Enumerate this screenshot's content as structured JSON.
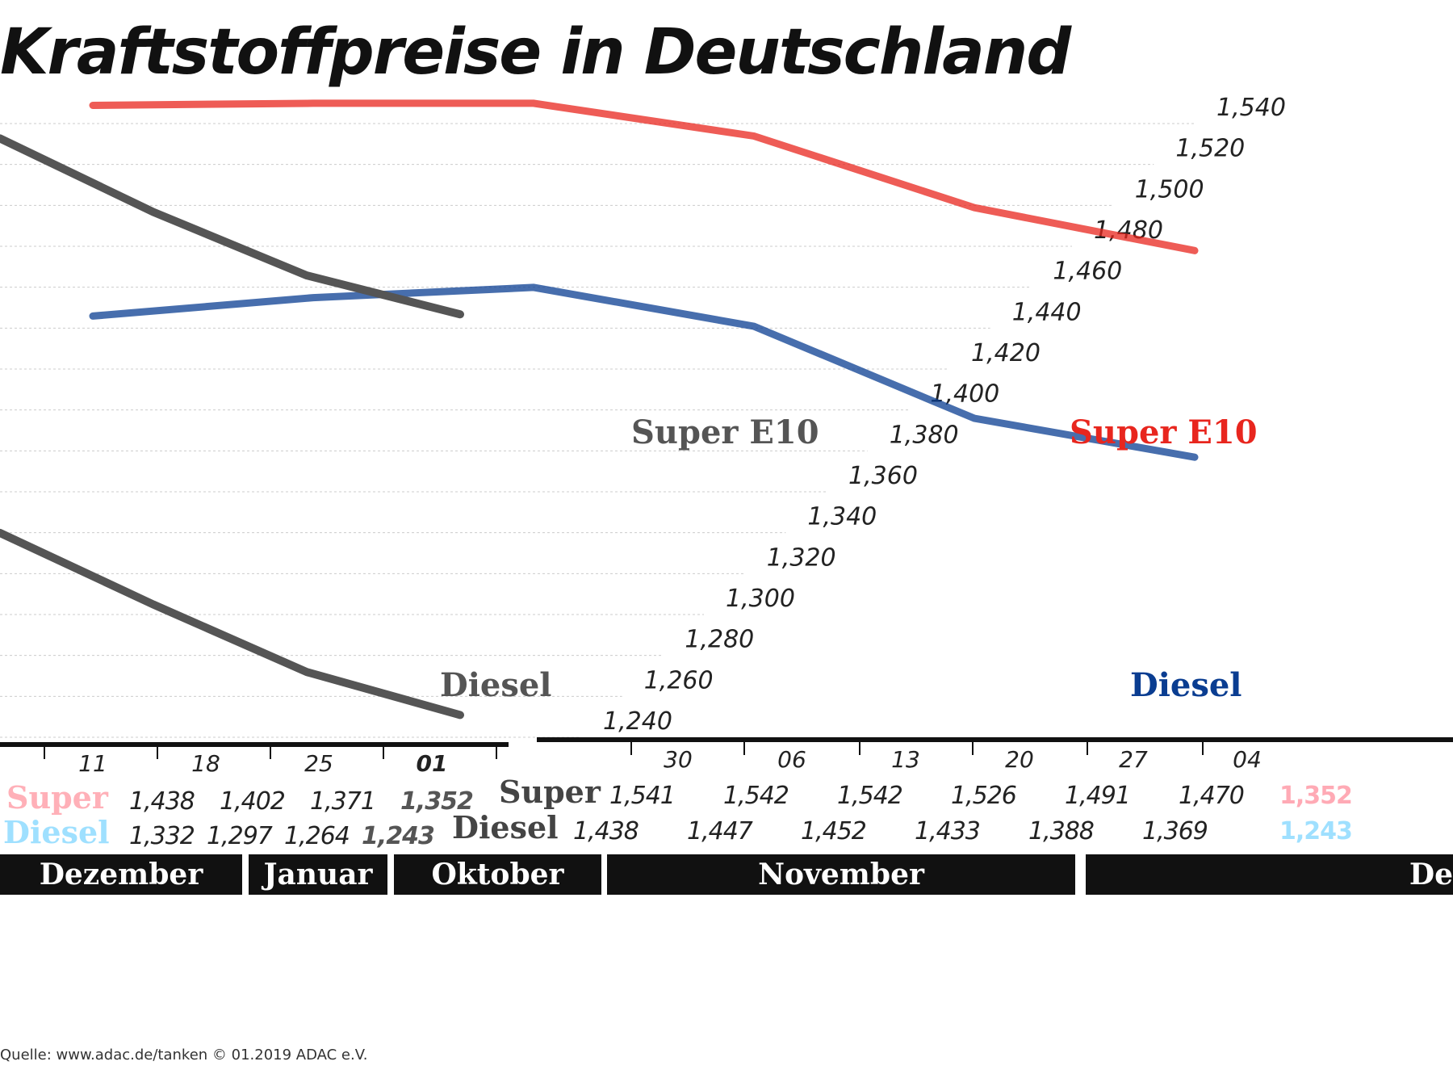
{
  "title": "Kraftstoffpreise in Deutschland",
  "source": "Quelle: www.adac.de/tanken   © 01.2019 ADAC e.V.",
  "row_labels": {
    "super": "Super",
    "diesel": "Diesel"
  },
  "months": [
    "Dezember",
    "Januar",
    "Oktober",
    "November",
    "De"
  ],
  "colors": {
    "super": "#e8261e",
    "super_light": "#ff9e90",
    "diesel": "#0a3d91",
    "diesel_light": "#bfeeff",
    "overlay": "#555555"
  },
  "chart_data": [
    {
      "type": "line",
      "title": "Kraftstoffpreise in Deutschland",
      "categories": [
        "30",
        "06",
        "13",
        "20",
        "27",
        "04"
      ],
      "series": [
        {
          "name": "Super E10",
          "values": [
            1.541,
            1.542,
            1.542,
            1.526,
            1.491,
            1.47
          ]
        },
        {
          "name": "Diesel",
          "values": [
            1.438,
            1.447,
            1.452,
            1.433,
            1.388,
            1.369
          ]
        }
      ],
      "end_labels": {
        "super": "1,352",
        "diesel": "1,243"
      },
      "yticks": [
        "1,240",
        "1,260",
        "1,280",
        "1,300",
        "1,320",
        "1,340",
        "1,360",
        "1,380",
        "1,400",
        "1,420",
        "1,440",
        "1,460",
        "1,480",
        "1,500",
        "1,520",
        "1,540"
      ],
      "ylim": [
        1.24,
        1.54
      ],
      "grid": true
    },
    {
      "type": "line",
      "categories": [
        "11",
        "18",
        "25",
        "01"
      ],
      "series": [
        {
          "name": "Super E10",
          "values": [
            1.438,
            1.402,
            1.371,
            1.352
          ]
        },
        {
          "name": "Diesel",
          "values": [
            1.332,
            1.297,
            1.264,
            1.243
          ]
        }
      ],
      "ylim": [
        1.24,
        1.54
      ]
    }
  ]
}
